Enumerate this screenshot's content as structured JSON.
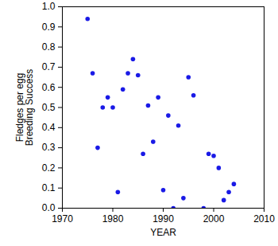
{
  "chart_data": {
    "type": "scatter",
    "x_label": "YEAR",
    "y_label": "Fledges per egg\nBreeding Success",
    "x": [
      1975,
      1976,
      1977,
      1978,
      1979,
      1980,
      1981,
      1982,
      1983,
      1984,
      1985,
      1986,
      1987,
      1988,
      1989,
      1990,
      1991,
      1992,
      1993,
      1994,
      1995,
      1996,
      1998,
      1999,
      2000,
      2001,
      2002,
      2003,
      2004
    ],
    "values": [
      0.94,
      0.67,
      0.3,
      0.5,
      0.55,
      0.5,
      0.08,
      0.59,
      0.67,
      0.74,
      0.66,
      0.27,
      0.51,
      0.33,
      0.55,
      0.09,
      0.46,
      0.0,
      0.41,
      0.05,
      0.65,
      0.56,
      0.0,
      0.27,
      0.26,
      0.2,
      0.04,
      0.08,
      0.12
    ],
    "color": "#1a1ae6",
    "marker": "circle",
    "xlim": [
      1970,
      2010
    ],
    "xticks": [
      1970,
      1980,
      1990,
      2000,
      2010
    ],
    "ylim": [
      0,
      1
    ],
    "yticks": [
      {
        "value": 0,
        "label": "0.0"
      },
      0.1,
      0.2,
      0.3,
      0.4,
      0.5,
      0.6,
      0.7,
      0.8,
      0.9,
      {
        "value": 1,
        "label": "1.0"
      }
    ],
    "grid": false
  }
}
